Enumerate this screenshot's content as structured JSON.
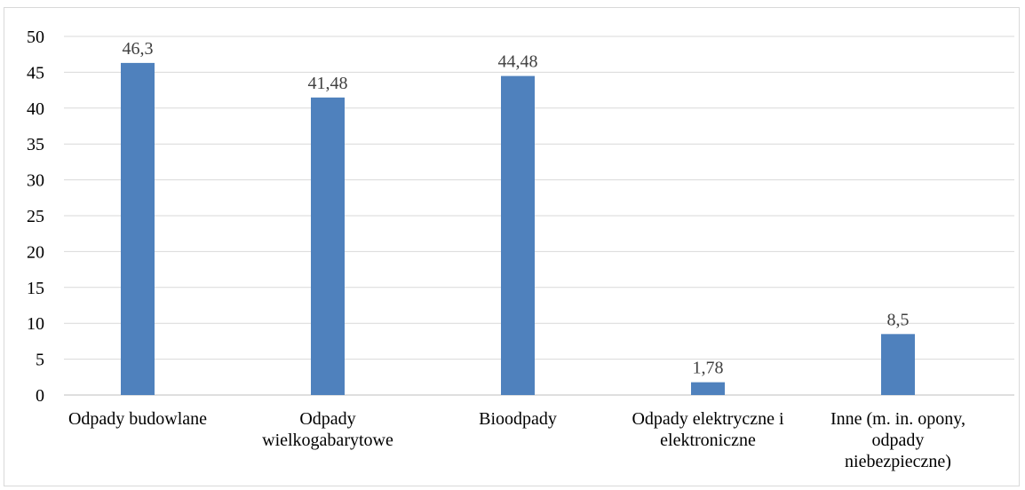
{
  "chart_data": {
    "type": "bar",
    "categories": [
      [
        "Odpady budowlane"
      ],
      [
        "Odpady",
        "wielkogabarytowe"
      ],
      [
        "Bioodpady"
      ],
      [
        "Odpady elektryczne i",
        "elektroniczne"
      ],
      [
        "Inne (m. in. opony,",
        "odpady",
        "niebezpieczne)"
      ]
    ],
    "values": [
      46.3,
      41.48,
      44.48,
      1.78,
      8.5
    ],
    "data_labels": [
      "46,3",
      "41,48",
      "44,48",
      "1,78",
      "8,5"
    ],
    "ylim": [
      0,
      50
    ],
    "yticks": [
      0,
      5,
      10,
      15,
      20,
      25,
      30,
      35,
      40,
      45,
      50
    ],
    "grid": true,
    "legend": "none",
    "title": "",
    "xlabel": "",
    "ylabel": "",
    "colors": {
      "bar": "#4f81bd",
      "grid": "#d9d9d9",
      "axis": "#bfbfbf"
    }
  }
}
